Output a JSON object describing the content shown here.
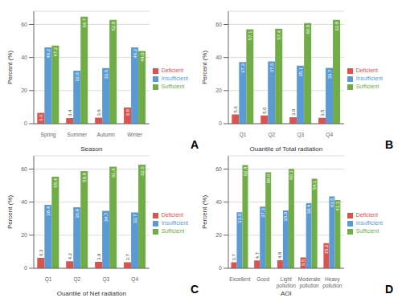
{
  "chart_data": [
    {
      "type": "bar",
      "title": "A",
      "x_label": "Season",
      "y_label": "Percent (%)",
      "categories": [
        "Spring",
        "Summer",
        "Autumn",
        "Winter"
      ],
      "series": [
        {
          "name": "Deficient",
          "color": "#d9534f",
          "values": [
            6.6,
            3.4,
            3.6,
            9.8
          ]
        },
        {
          "name": "Insufficient",
          "color": "#5b9bd5",
          "values": [
            46.2,
            32.0,
            33.6,
            46.2
          ]
        },
        {
          "name": "Sufficient",
          "color": "#70ad47",
          "values": [
            47.2,
            64.7,
            62.8,
            44.0
          ]
        }
      ],
      "ylim": [
        0,
        68
      ],
      "yticks": [
        0,
        20,
        40,
        60
      ],
      "grid": true,
      "legend": "right",
      "data_labels": true
    },
    {
      "type": "bar",
      "title": "B",
      "x_label": "Quantile of Total radiation",
      "y_label": "Percent (%)",
      "categories": [
        "Q1",
        "Q2",
        "Q3",
        "Q4"
      ],
      "series": [
        {
          "name": "Deficient",
          "color": "#d9534f",
          "values": [
            5.6,
            5.0,
            3.9,
            3.5
          ]
        },
        {
          "name": "Insufficient",
          "color": "#5b9bd5",
          "values": [
            37.3,
            37.6,
            35.1,
            33.7
          ]
        },
        {
          "name": "Sufficient",
          "color": "#70ad47",
          "values": [
            57.1,
            57.4,
            60.8,
            62.8
          ]
        }
      ],
      "ylim": [
        0,
        68
      ],
      "yticks": [
        0,
        20,
        40,
        60
      ],
      "grid": true,
      "legend": "right",
      "data_labels": true
    },
    {
      "type": "bar",
      "title": "C",
      "x_label": "Quantile of Net radiation",
      "y_label": "Percent (%)",
      "categories": [
        "Q1",
        "Q2",
        "Q3",
        "Q4"
      ],
      "series": [
        {
          "name": "Deficient",
          "color": "#d9534f",
          "values": [
            6.3,
            4.2,
            3.9,
            3.7
          ]
        },
        {
          "name": "Insufficient",
          "color": "#5b9bd5",
          "values": [
            38.4,
            36.9,
            34.7,
            33.7
          ]
        },
        {
          "name": "Sufficient",
          "color": "#70ad47",
          "values": [
            55.4,
            58.8,
            61.4,
            62.6
          ]
        }
      ],
      "ylim": [
        0,
        68
      ],
      "yticks": [
        0,
        20,
        40,
        60
      ],
      "grid": true,
      "legend": "right",
      "data_labels": true
    },
    {
      "type": "bar",
      "title": "D",
      "x_label": "AQI",
      "y_label": "Percent (%)",
      "categories": [
        "Excellent",
        "Good",
        "Light pollution",
        "Moderate pollution",
        "Heavy pollution"
      ],
      "series": [
        {
          "name": "Deficient",
          "color": "#d9534f",
          "values": [
            3.7,
            4.7,
            4.8,
            6.5,
            15.2
          ]
        },
        {
          "name": "Insufficient",
          "color": "#5b9bd5",
          "values": [
            33.9,
            37.3,
            35.0,
            39.4,
            43.5
          ]
        },
        {
          "name": "Sufficient",
          "color": "#70ad47",
          "values": [
            62.4,
            58.0,
            60.1,
            54.1,
            41.3
          ]
        }
      ],
      "ylim": [
        0,
        68
      ],
      "yticks": [
        0,
        20,
        40,
        60
      ],
      "grid": true,
      "legend": "right",
      "data_labels": true
    }
  ]
}
